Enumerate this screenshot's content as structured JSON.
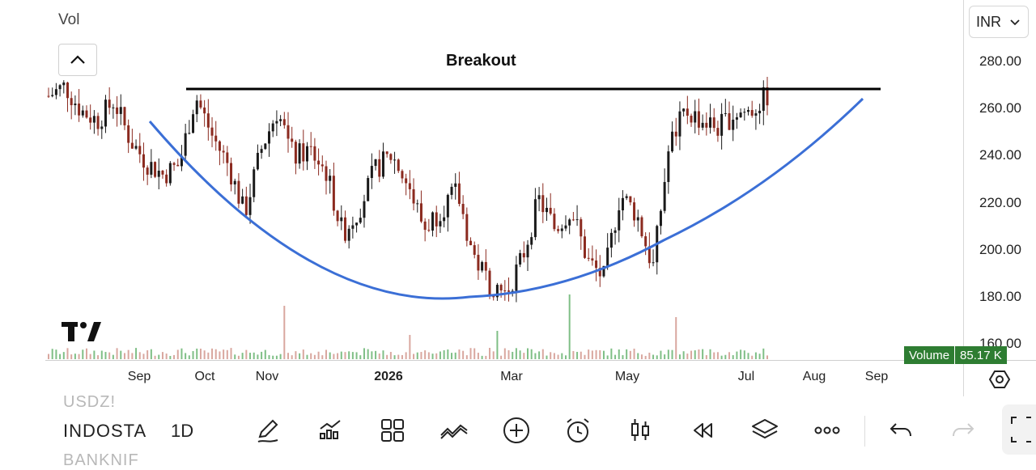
{
  "toolbar_top": {
    "currency": "INR"
  },
  "pane": {
    "vol_label": "Vol"
  },
  "annotation": {
    "breakout_label": "Breakout"
  },
  "price_axis": {
    "labels": [
      "280.00",
      "260.00",
      "240.00",
      "220.00",
      "200.00",
      "180.00",
      "160.00"
    ]
  },
  "time_axis": {
    "labels": [
      "Sep",
      "Oct",
      "Nov",
      "2026",
      "Mar",
      "May",
      "Jul",
      "Aug",
      "Sep"
    ],
    "bold": [
      false,
      false,
      false,
      true,
      false,
      false,
      false,
      false,
      false
    ]
  },
  "volume_badge": {
    "label": "Volume",
    "value": "85.17 K"
  },
  "bottom_bar": {
    "symbols_ghost": [
      "USDZ!",
      "BANKNIF"
    ],
    "symbol": "INDOSTA",
    "interval": "1D"
  },
  "colors": {
    "up": "#1a1a1a",
    "down": "#8b2a1f",
    "curve": "#3b6fd6",
    "breakout_line": "#000000",
    "volume": "#7fbf86",
    "volume_badge": "#2e7d32"
  },
  "chart_data": {
    "type": "candlestick",
    "ylim": [
      160,
      285
    ],
    "x_range": [
      "2025-08-01",
      "2025-09-30 next year"
    ],
    "annotations": [
      {
        "kind": "horizontal_line",
        "level": 269,
        "label": "Breakout"
      },
      {
        "kind": "cup_curve",
        "start_price": 255,
        "bottom_price": 180,
        "end_price": 264
      }
    ],
    "price_path": [
      268,
      272,
      262,
      258,
      266,
      250,
      241,
      236,
      240,
      268,
      252,
      240,
      220,
      246,
      262,
      243,
      246,
      237,
      212,
      222,
      238,
      244,
      232,
      214,
      222,
      229,
      203,
      192,
      188,
      202,
      226,
      214,
      222,
      201,
      194,
      228,
      220,
      198,
      248,
      262,
      258,
      255,
      261,
      262,
      268
    ]
  }
}
